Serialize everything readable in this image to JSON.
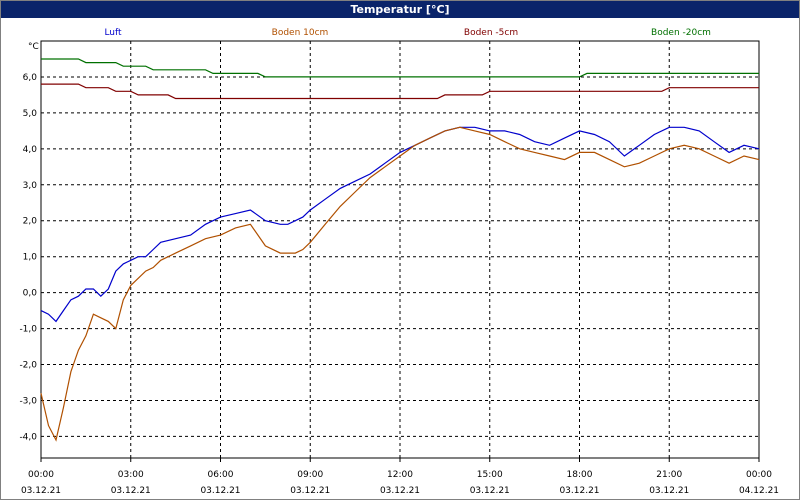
{
  "window": {
    "title": "Temperatur [°C]"
  },
  "chart_data": {
    "type": "line",
    "title": "Temperatur [°C]",
    "ylabel": "°C",
    "ylim": [
      -4.6,
      7.0
    ],
    "xlim_hours": [
      0,
      24
    ],
    "grid": true,
    "legend_placement": "top",
    "y_ticks": [
      "6,0",
      "5,0",
      "4,0",
      "3,0",
      "2,0",
      "1,0",
      "0,0",
      "-1,0",
      "-2,0",
      "-3,0",
      "-4,0"
    ],
    "y_tick_values": [
      6,
      5,
      4,
      3,
      2,
      1,
      0,
      -1,
      -2,
      -3,
      -4
    ],
    "x_ticks": [
      {
        "time": "00:00",
        "date": "03.12.21"
      },
      {
        "time": "03:00",
        "date": "03.12.21"
      },
      {
        "time": "06:00",
        "date": "03.12.21"
      },
      {
        "time": "09:00",
        "date": "03.12.21"
      },
      {
        "time": "12:00",
        "date": "03.12.21"
      },
      {
        "time": "15:00",
        "date": "03.12.21"
      },
      {
        "time": "18:00",
        "date": "03.12.21"
      },
      {
        "time": "21:00",
        "date": "03.12.21"
      },
      {
        "time": "00:00",
        "date": "04.12.21"
      }
    ],
    "x_tick_hours": [
      0,
      3,
      6,
      9,
      12,
      15,
      18,
      21,
      24
    ],
    "series": [
      {
        "name": "Luft",
        "color": "#0000cc",
        "x": [
          0,
          0.25,
          0.5,
          0.75,
          1.0,
          1.25,
          1.5,
          1.75,
          2.0,
          2.25,
          2.5,
          2.75,
          3.0,
          3.25,
          3.5,
          3.75,
          4.0,
          4.5,
          5.0,
          5.5,
          6.0,
          6.5,
          7.0,
          7.5,
          8.0,
          8.25,
          8.5,
          8.75,
          9.0,
          9.5,
          10.0,
          10.5,
          11.0,
          11.5,
          12.0,
          12.5,
          13.0,
          13.5,
          14.0,
          14.5,
          15.0,
          15.5,
          16.0,
          16.5,
          17.0,
          17.5,
          18.0,
          18.5,
          19.0,
          19.5,
          20.0,
          20.5,
          21.0,
          21.5,
          22.0,
          22.5,
          23.0,
          23.5,
          24.0
        ],
        "values": [
          -0.5,
          -0.6,
          -0.8,
          -0.5,
          -0.2,
          -0.1,
          0.1,
          0.1,
          -0.1,
          0.1,
          0.6,
          0.8,
          0.9,
          1.0,
          1.0,
          1.2,
          1.4,
          1.5,
          1.6,
          1.9,
          2.1,
          2.2,
          2.3,
          2.0,
          1.9,
          1.9,
          2.0,
          2.1,
          2.3,
          2.6,
          2.9,
          3.1,
          3.3,
          3.6,
          3.9,
          4.1,
          4.3,
          4.5,
          4.6,
          4.6,
          4.5,
          4.5,
          4.4,
          4.2,
          4.1,
          4.3,
          4.5,
          4.4,
          4.2,
          3.8,
          4.1,
          4.4,
          4.6,
          4.6,
          4.5,
          4.2,
          3.9,
          4.1,
          4.0
        ]
      },
      {
        "name": "Boden 10cm",
        "color": "#b05000",
        "x": [
          0,
          0.25,
          0.5,
          0.75,
          1.0,
          1.25,
          1.5,
          1.75,
          2.0,
          2.25,
          2.5,
          2.75,
          3.0,
          3.25,
          3.5,
          3.75,
          4.0,
          4.5,
          5.0,
          5.5,
          6.0,
          6.5,
          7.0,
          7.5,
          8.0,
          8.25,
          8.5,
          8.75,
          9.0,
          9.5,
          10.0,
          10.5,
          11.0,
          11.5,
          12.0,
          12.5,
          13.0,
          13.5,
          14.0,
          14.5,
          15.0,
          15.5,
          16.0,
          16.5,
          17.0,
          17.5,
          18.0,
          18.5,
          19.0,
          19.5,
          20.0,
          20.5,
          21.0,
          21.5,
          22.0,
          22.5,
          23.0,
          23.5,
          24.0
        ],
        "values": [
          -2.8,
          -3.7,
          -4.1,
          -3.2,
          -2.2,
          -1.6,
          -1.2,
          -0.6,
          -0.7,
          -0.8,
          -1.0,
          -0.2,
          0.2,
          0.4,
          0.6,
          0.7,
          0.9,
          1.1,
          1.3,
          1.5,
          1.6,
          1.8,
          1.9,
          1.3,
          1.1,
          1.1,
          1.1,
          1.2,
          1.4,
          1.9,
          2.4,
          2.8,
          3.2,
          3.5,
          3.8,
          4.1,
          4.3,
          4.5,
          4.6,
          4.5,
          4.4,
          4.2,
          4.0,
          3.9,
          3.8,
          3.7,
          3.9,
          3.9,
          3.7,
          3.5,
          3.6,
          3.8,
          4.0,
          4.1,
          4.0,
          3.8,
          3.6,
          3.8,
          3.7
        ]
      },
      {
        "name": "Boden -5cm",
        "color": "#800000",
        "x": [
          0,
          0.25,
          1.25,
          1.5,
          2.25,
          2.5,
          3.0,
          3.25,
          4.25,
          4.5,
          13.25,
          13.5,
          14.75,
          15.0,
          20.75,
          21.0,
          24.0
        ],
        "values": [
          5.8,
          5.8,
          5.8,
          5.7,
          5.7,
          5.6,
          5.6,
          5.5,
          5.5,
          5.4,
          5.4,
          5.5,
          5.5,
          5.6,
          5.6,
          5.7,
          5.7
        ]
      },
      {
        "name": "Boden -20cm",
        "color": "#007000",
        "x": [
          0,
          1.25,
          1.5,
          2.5,
          2.75,
          3.5,
          3.75,
          5.5,
          5.75,
          7.25,
          7.5,
          18.0,
          18.25,
          24.0
        ],
        "values": [
          6.5,
          6.5,
          6.4,
          6.4,
          6.3,
          6.3,
          6.2,
          6.2,
          6.1,
          6.1,
          6.0,
          6.0,
          6.1,
          6.1
        ]
      }
    ]
  }
}
